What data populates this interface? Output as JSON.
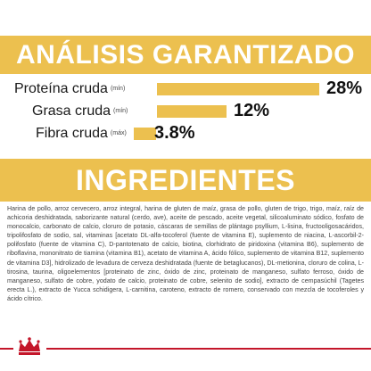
{
  "header": {
    "title": "ANÁLISIS GARANTIZADO"
  },
  "analysis": [
    {
      "name": "Proteína cruda",
      "qualifier": "(mín)",
      "value": "28%",
      "fraction": 0.28
    },
    {
      "name": "Grasa cruda",
      "qualifier": "(mín)",
      "value": "12%",
      "fraction": 0.12
    },
    {
      "name": "Fibra cruda",
      "qualifier": "(máx)",
      "value": "3.8%",
      "fraction": 0.038
    }
  ],
  "ingredients": {
    "title": "INGREDIENTES",
    "text": "Harina de pollo, arroz cervecero, arroz integral, harina de gluten de maíz, grasa de pollo, gluten de trigo, trigo, maíz, raíz de achicoria deshidratada, saborizante natural (cerdo, ave), aceite de pescado, aceite vegetal, silicoaluminato sódico, fosfato de monocalcio, carbonato de calcio, cloruro de potasio, cáscaras de semillas de plántago psyllium, L-lisina, fructooligosacáridos, tripolifosfato de sodio, sal, vitaminas [acetato DL-alfa-tocoferol (fuente de vitamina E), suplemento de niacina, L-ascorbil-2-polifosfato (fuente de vitamina C), D-pantotenato de calcio, biotina, clorhidrato de piridoxina (vitamina B6), suplemento de riboflavina, mononitrato de tiamina (vitamina B1), acetato de vitamina A, ácido fólico, suplemento de vitamina B12, suplemento de vitamina D3], hidrolizado de levadura de cerveza deshidratada (fuente de betaglucanos), DL-metionina, cloruro de colina, L-tirosina, taurina, oligoelementos [proteinato de zinc, óxido de zinc, proteinato de manganeso, sulfato ferroso, óxido de manganeso, sulfato de cobre, yodato de calcio, proteinato de cobre, selenito de sodio], extracto de cempasúchil (Tagetes erecta L.), extracto de Yucca schidigera, L-carnitina, caroteno, extracto de romero, conservado con mezcla de tocoferoles y ácido cítrico."
  },
  "colors": {
    "accent": "#ecc04f",
    "brand_red": "#c4162a"
  },
  "brand": {
    "logo_icon": "royal-canin-crown-icon"
  }
}
